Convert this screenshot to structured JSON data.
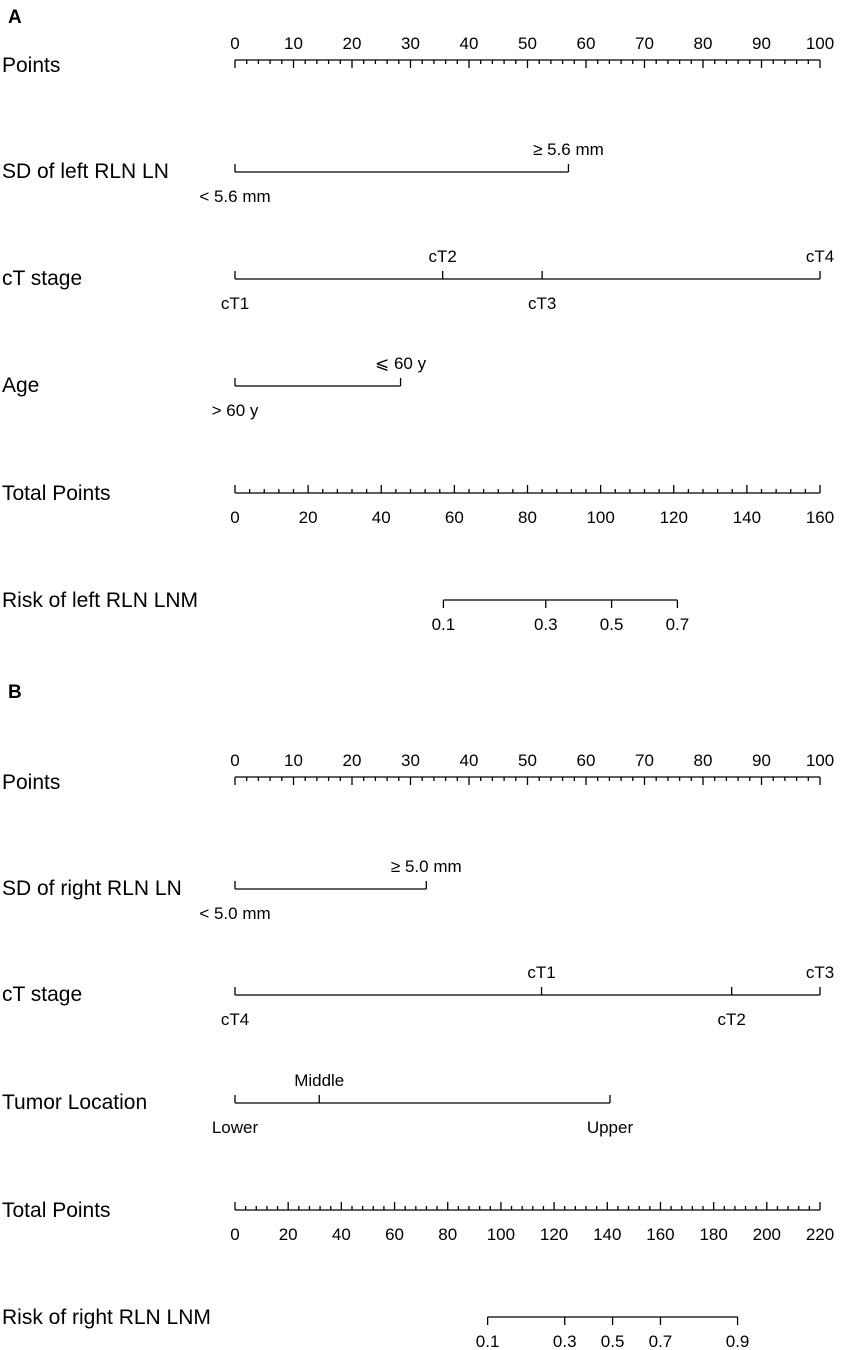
{
  "chart_data": [
    {
      "type": "nomogram",
      "panel": "A",
      "rows": [
        {
          "label": "Points",
          "kind": "points",
          "range": [
            0,
            100
          ],
          "major_ticks": [
            0,
            10,
            20,
            30,
            40,
            50,
            60,
            70,
            80,
            90,
            100
          ],
          "minor_step": 2
        },
        {
          "label": "SD of left RLN LN",
          "kind": "variable",
          "levels": [
            {
              "label": "< 5.6 mm",
              "points": 0
            },
            {
              "label": "≥ 5.6 mm",
              "points": 57
            }
          ]
        },
        {
          "label": "cT stage",
          "kind": "variable",
          "levels": [
            {
              "label": "cT1",
              "points": 0
            },
            {
              "label": "cT2",
              "points": 35.5
            },
            {
              "label": "cT3",
              "points": 52.5
            },
            {
              "label": "cT4",
              "points": 100
            }
          ]
        },
        {
          "label": "Age",
          "kind": "variable",
          "levels": [
            {
              "label": "> 60 y",
              "points": 0
            },
            {
              "label": "⩽ 60 y",
              "points": 28.3
            }
          ]
        },
        {
          "label": "Total Points",
          "kind": "total",
          "range": [
            0,
            160
          ],
          "major_ticks": [
            0,
            20,
            40,
            60,
            80,
            100,
            120,
            140,
            160
          ],
          "minor_step": 4
        },
        {
          "label": "Risk of left RLN LNM",
          "kind": "risk",
          "ticks": [
            {
              "label": "0.1",
              "total_points": 57
            },
            {
              "label": "0.3",
              "total_points": 85
            },
            {
              "label": "0.5",
              "total_points": 103
            },
            {
              "label": "0.7",
              "total_points": 121
            }
          ]
        }
      ]
    },
    {
      "type": "nomogram",
      "panel": "B",
      "rows": [
        {
          "label": "Points",
          "kind": "points",
          "range": [
            0,
            100
          ],
          "major_ticks": [
            0,
            10,
            20,
            30,
            40,
            50,
            60,
            70,
            80,
            90,
            100
          ],
          "minor_step": 2
        },
        {
          "label": "SD of right RLN LN",
          "kind": "variable",
          "levels": [
            {
              "label": "< 5.0 mm",
              "points": 0
            },
            {
              "label": "≥ 5.0 mm",
              "points": 32.7
            }
          ]
        },
        {
          "label": "cT stage",
          "kind": "variable",
          "levels": [
            {
              "label": "cT4",
              "points": 0
            },
            {
              "label": "cT1",
              "points": 52.4
            },
            {
              "label": "cT2",
              "points": 84.9
            },
            {
              "label": "cT3",
              "points": 100
            }
          ]
        },
        {
          "label": "Tumor Location",
          "kind": "variable",
          "levels": [
            {
              "label": "Lower",
              "points": 0
            },
            {
              "label": "Middle",
              "points": 14.4
            },
            {
              "label": "Upper",
              "points": 64.1
            }
          ]
        },
        {
          "label": "Total Points",
          "kind": "total",
          "range": [
            0,
            220
          ],
          "major_ticks": [
            0,
            20,
            40,
            60,
            80,
            100,
            120,
            140,
            160,
            180,
            200,
            220
          ],
          "minor_step": 4
        },
        {
          "label": "Risk of right RLN LNM",
          "kind": "risk",
          "ticks": [
            {
              "label": "0.1",
              "total_points": 95
            },
            {
              "label": "0.3",
              "total_points": 124
            },
            {
              "label": "0.5",
              "total_points": 142
            },
            {
              "label": "0.7",
              "total_points": 160
            },
            {
              "label": "0.9",
              "total_points": 189
            }
          ]
        }
      ]
    }
  ]
}
